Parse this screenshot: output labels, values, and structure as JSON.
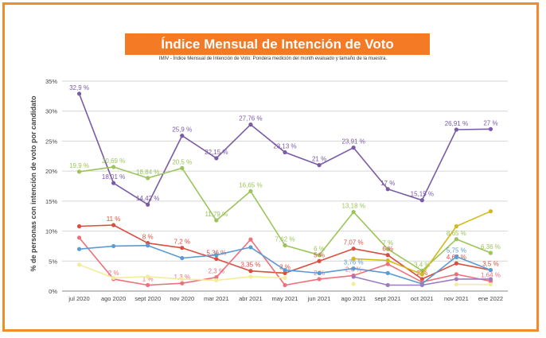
{
  "chart_data": {
    "type": "line",
    "title": "Índice Mensual  de Intención de Voto",
    "subtitle": "IMIV - Índice Mensual de Intención de Voto: Pondera medición del month evaluado y tamaño de la muestra.",
    "xlabel": "",
    "ylabel": "% de personas con intención de voto por candidato",
    "ylim": [
      0,
      35
    ],
    "yticks": [
      "0%",
      "5%",
      "10%",
      "15%",
      "20%",
      "25%",
      "30%",
      "35%"
    ],
    "grid": true,
    "categories": [
      "jul 2020",
      "ago 2020",
      "sept 2020",
      "nov 2020",
      "mar 2021",
      "abr 2021",
      "may 2021",
      "jun 2021",
      "ago 2021",
      "sept 2021",
      "oct 2021",
      "nov 2021",
      "ene 2022"
    ],
    "series": [
      {
        "color": "#7b5aa6",
        "values": [
          32.9,
          18.01,
          14.42,
          25.9,
          22.15,
          27.76,
          23.13,
          21,
          23.91,
          17,
          15.15,
          26.91,
          27
        ],
        "labels": [
          "32,9 %",
          "18,01 %",
          "14,42 %",
          "25,9 %",
          "22,15 %",
          "27,76 %",
          "23,13 %",
          "21 %",
          "23,91 %",
          "17 %",
          "15,15 %",
          "26,91 %",
          "27 %"
        ]
      },
      {
        "color": "#9bc55a",
        "values": [
          19.9,
          20.69,
          18.84,
          20.5,
          11.79,
          16.65,
          7.62,
          6,
          13.18,
          7,
          3.4,
          8.65,
          6.36
        ],
        "labels": [
          "19,9 %",
          "20,69 %",
          "18,84 %",
          "20,5 %",
          "11,79 %",
          "16,65 %",
          "7,62 %",
          "6 %",
          "13,18 %",
          "7 %",
          "3,4 %",
          "8,65 %",
          "6,36 %"
        ]
      },
      {
        "color": "#d94f3f",
        "values": [
          10.8,
          11,
          8,
          7.2,
          5.36,
          3.35,
          3,
          5,
          7.07,
          6,
          2,
          4.62,
          3.5
        ],
        "labels": [
          "",
          "11 %",
          "8 %",
          "7,2 %",
          "5,36 %",
          "3,35 %",
          "3 %",
          "5 %",
          "7,07 %",
          "6 %",
          "2 %",
          "4,62 %",
          "3,5 %"
        ]
      },
      {
        "color": "#ef6f7b",
        "values": [
          8.9,
          2,
          1,
          1.3,
          2.3,
          8.6,
          1,
          2,
          2.6,
          4.5,
          1.5,
          2.8,
          1.64
        ],
        "labels": [
          "",
          "2 %",
          "1 %",
          "1,3 %",
          "2,3 %",
          "",
          "",
          "2 %",
          "2,6 %",
          "",
          "",
          "",
          "1,64 %"
        ]
      },
      {
        "color": "#5b9bd5",
        "values": [
          7,
          7.5,
          7.6,
          5.5,
          6,
          7.3,
          3.5,
          3,
          3.76,
          3,
          1.2,
          5.75,
          3.5
        ],
        "labels": [
          "",
          "",
          "",
          "",
          "",
          "",
          "",
          "",
          "3,76 %",
          "",
          "",
          "5,75 %",
          ""
        ]
      },
      {
        "color": "#d4b91c",
        "values": [
          null,
          null,
          null,
          null,
          null,
          null,
          null,
          null,
          5.4,
          5.1,
          2.8,
          10.8,
          13.3
        ],
        "labels": [
          "",
          "",
          "",
          "",
          "",
          "",
          "",
          "",
          "",
          "",
          "",
          "",
          ""
        ]
      },
      {
        "color": "#f3ec9a",
        "values": [
          4.4,
          2.2,
          2.4,
          2,
          1.8,
          2.4,
          2.2,
          null,
          1.2,
          null,
          null,
          1.1,
          1.1
        ],
        "labels": [
          "",
          "",
          "",
          "",
          "",
          "",
          "",
          "",
          "",
          "",
          "",
          "",
          ""
        ]
      },
      {
        "color": "#9e7bbf",
        "values": [
          null,
          null,
          null,
          null,
          null,
          null,
          null,
          null,
          2.4,
          1,
          1,
          2,
          2
        ],
        "labels": [
          "",
          "",
          "",
          "",
          "",
          "",
          "",
          "",
          "",
          "",
          "",
          "",
          ""
        ]
      }
    ]
  }
}
